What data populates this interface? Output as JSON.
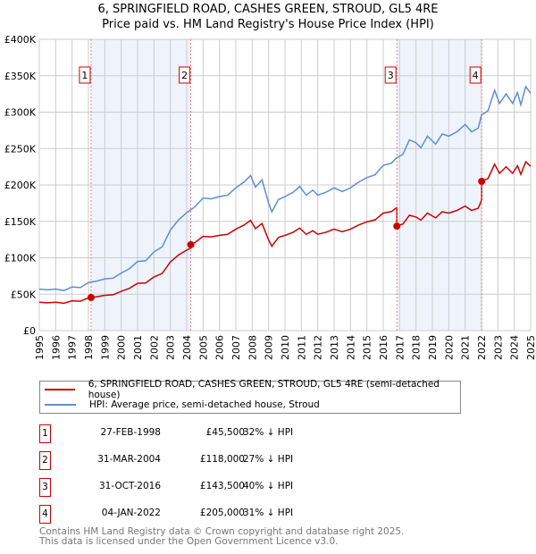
{
  "chart_data": {
    "type": "line",
    "title": "6, SPRINGFIELD ROAD, CASHES GREEN, STROUD, GL5 4RE",
    "subtitle": "Price paid vs. HM Land Registry's House Price Index (HPI)",
    "xlim": [
      1995,
      2025
    ],
    "ylim": [
      0,
      400000
    ],
    "x_ticks": [
      "1995",
      "1996",
      "1997",
      "1998",
      "1999",
      "2000",
      "2001",
      "2002",
      "2003",
      "2004",
      "2005",
      "2006",
      "2007",
      "2008",
      "2009",
      "2010",
      "2011",
      "2012",
      "2013",
      "2014",
      "2015",
      "2016",
      "2017",
      "2018",
      "2019",
      "2020",
      "2021",
      "2022",
      "2023",
      "2024",
      "2025"
    ],
    "y_ticks": [
      {
        "v": 0,
        "label": "£0"
      },
      {
        "v": 50000,
        "label": "£50K"
      },
      {
        "v": 100000,
        "label": "£100K"
      },
      {
        "v": 150000,
        "label": "£150K"
      },
      {
        "v": 200000,
        "label": "£200K"
      },
      {
        "v": 250000,
        "label": "£250K"
      },
      {
        "v": 300000,
        "label": "£300K"
      },
      {
        "v": 350000,
        "label": "£350K"
      },
      {
        "v": 400000,
        "label": "£400K"
      }
    ],
    "grid": true,
    "colors": {
      "property": "#cc0000",
      "hpi": "#5b8fd6",
      "shade": "#eef3fc",
      "grid": "#cccccc"
    },
    "hpi_series": [
      [
        1995,
        57
      ],
      [
        1995.5,
        56
      ],
      [
        1996,
        57
      ],
      [
        1996.5,
        55
      ],
      [
        1997,
        60
      ],
      [
        1997.5,
        59
      ],
      [
        1998,
        66
      ],
      [
        1998.5,
        68
      ],
      [
        1999,
        71
      ],
      [
        1999.5,
        72
      ],
      [
        2000,
        79
      ],
      [
        2000.5,
        85
      ],
      [
        2001,
        95
      ],
      [
        2001.5,
        96
      ],
      [
        2002,
        108
      ],
      [
        2002.5,
        115
      ],
      [
        2003,
        138
      ],
      [
        2003.5,
        152
      ],
      [
        2004,
        162
      ],
      [
        2004.5,
        170
      ],
      [
        2005,
        182
      ],
      [
        2005.5,
        181
      ],
      [
        2006,
        184
      ],
      [
        2006.5,
        186
      ],
      [
        2007,
        196
      ],
      [
        2007.5,
        204
      ],
      [
        2007.9,
        213
      ],
      [
        2008.2,
        197
      ],
      [
        2008.6,
        207
      ],
      [
        2009,
        175
      ],
      [
        2009.2,
        163
      ],
      [
        2009.6,
        180
      ],
      [
        2010,
        184
      ],
      [
        2010.5,
        190
      ],
      [
        2010.9,
        198
      ],
      [
        2011.3,
        186
      ],
      [
        2011.7,
        193
      ],
      [
        2012,
        186
      ],
      [
        2012.5,
        190
      ],
      [
        2013,
        196
      ],
      [
        2013.5,
        191
      ],
      [
        2014,
        196
      ],
      [
        2014.5,
        204
      ],
      [
        2015,
        210
      ],
      [
        2015.5,
        214
      ],
      [
        2016,
        227
      ],
      [
        2016.5,
        230
      ],
      [
        2016.8,
        237
      ],
      [
        2017.2,
        242
      ],
      [
        2017.6,
        262
      ],
      [
        2018,
        258
      ],
      [
        2018.3,
        251
      ],
      [
        2018.7,
        267
      ],
      [
        2019.2,
        256
      ],
      [
        2019.6,
        270
      ],
      [
        2020,
        267
      ],
      [
        2020.5,
        273
      ],
      [
        2021,
        283
      ],
      [
        2021.4,
        273
      ],
      [
        2021.8,
        278
      ],
      [
        2022,
        296
      ],
      [
        2022.4,
        302
      ],
      [
        2022.8,
        330
      ],
      [
        2023.1,
        312
      ],
      [
        2023.5,
        325
      ],
      [
        2023.9,
        312
      ],
      [
        2024.2,
        327
      ],
      [
        2024.4,
        310
      ],
      [
        2024.7,
        335
      ],
      [
        2025,
        326
      ]
    ],
    "hpi_units": "£K",
    "sales": [
      {
        "num": "1",
        "year": 1998.16,
        "date": "27-FEB-1998",
        "price": 45500,
        "price_label": "£45,500",
        "hpi": "32% ↓ HPI"
      },
      {
        "num": "2",
        "year": 2004.25,
        "date": "31-MAR-2004",
        "price": 118000,
        "price_label": "£118,000",
        "hpi": "27% ↓ HPI"
      },
      {
        "num": "3",
        "year": 2016.83,
        "date": "31-OCT-2016",
        "price": 143500,
        "price_label": "£143,500",
        "hpi": "40% ↓ HPI"
      },
      {
        "num": "4",
        "year": 2022.01,
        "date": "04-JAN-2022",
        "price": 205000,
        "price_label": "£205,000",
        "hpi": "31% ↓ HPI"
      }
    ],
    "legend": {
      "placement": "below",
      "property": "6, SPRINGFIELD ROAD, CASHES GREEN, STROUD, GL5 4RE (semi-detached house)",
      "hpi": "HPI: Average price, semi-detached house, Stroud"
    }
  },
  "footer": {
    "line1": "Contains HM Land Registry data © Crown copyright and database right 2025.",
    "line2": "This data is licensed under the Open Government Licence v3.0."
  }
}
